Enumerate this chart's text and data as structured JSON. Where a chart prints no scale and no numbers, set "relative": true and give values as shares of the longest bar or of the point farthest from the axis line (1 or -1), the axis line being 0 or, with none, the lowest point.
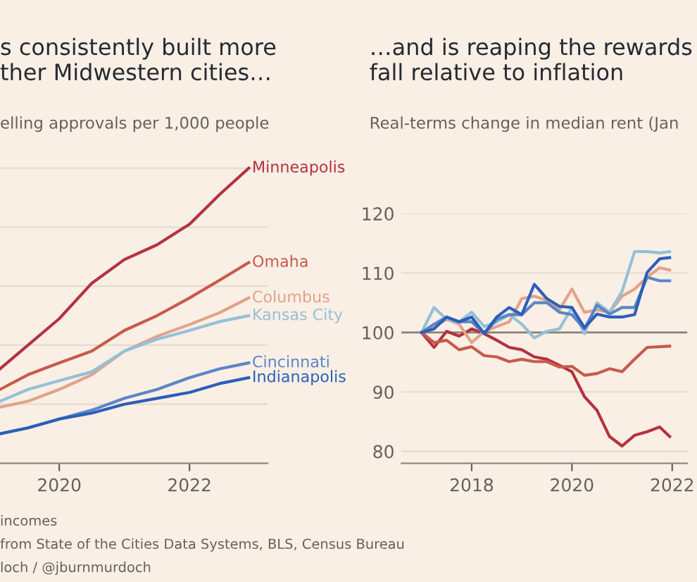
{
  "chart_data": [
    {
      "type": "line",
      "title": "s consistently built more\nther Midwestern cities…",
      "subtitle": "elling approvals per 1,000 people",
      "relative": true,
      "grid": "y",
      "x": [
        2019.09,
        2019.52,
        2020,
        2020.5,
        2021,
        2021.5,
        2022,
        2022.46,
        2022.91
      ],
      "xlim": [
        2019.09,
        2023.2
      ],
      "xticks": [
        2020,
        2022
      ],
      "series": [
        {
          "name": "Minneapolis",
          "color": "#b5323f",
          "values": [
            0.32,
            0.4,
            0.49,
            0.61,
            0.69,
            0.74,
            0.81,
            0.91,
            1.0
          ]
        },
        {
          "name": "Omaha",
          "color": "#c75a4a",
          "values": [
            0.25,
            0.3,
            0.34,
            0.38,
            0.45,
            0.5,
            0.56,
            0.62,
            0.68
          ]
        },
        {
          "name": "Columbus",
          "color": "#e2a28a",
          "values": [
            0.19,
            0.21,
            0.25,
            0.3,
            0.38,
            0.43,
            0.47,
            0.51,
            0.56
          ]
        },
        {
          "name": "Kansas City",
          "color": "#95c0d8",
          "values": [
            0.21,
            0.25,
            0.28,
            0.31,
            0.38,
            0.42,
            0.45,
            0.48,
            0.5
          ]
        },
        {
          "name": "Cincinnati",
          "color": "#5a86c6",
          "values": [
            0.1,
            0.12,
            0.15,
            0.18,
            0.22,
            0.25,
            0.29,
            0.32,
            0.34
          ]
        },
        {
          "name": "Indianapolis",
          "color": "#2d5fb8",
          "values": [
            0.1,
            0.12,
            0.15,
            0.17,
            0.2,
            0.22,
            0.24,
            0.27,
            0.29
          ]
        }
      ],
      "annotations": [
        "incomes",
        "from State of the Cities Data Systems, BLS, Census Bureau",
        "loch / @jburnmurdoch"
      ]
    },
    {
      "type": "line",
      "title": "…and is reaping the rewards\nfall relative to inflation",
      "subtitle": "Real-terms change in median rent (Jan",
      "grid": "y",
      "x": [
        2017.0,
        2017.25,
        2017.5,
        2017.75,
        2018.0,
        2018.25,
        2018.5,
        2018.75,
        2019.0,
        2019.25,
        2019.5,
        2019.75,
        2020.0,
        2020.25,
        2020.5,
        2020.75,
        2021.0,
        2021.25,
        2021.5,
        2021.75,
        2021.95
      ],
      "xlim": [
        2016.6,
        2022.3
      ],
      "xticks": [
        2018,
        2020,
        2022
      ],
      "ylim": [
        78,
        120
      ],
      "yticks": [
        80,
        90,
        100,
        110,
        120
      ],
      "ref_lines": [
        {
          "axis": "y",
          "value": 100,
          "color": "#8a8079"
        }
      ],
      "series": [
        {
          "color": "#b5323f",
          "values": [
            100,
            97.5,
            100.2,
            99.4,
            100.6,
            99.8,
            98.7,
            97.5,
            97.1,
            95.9,
            95.5,
            94.5,
            93.4,
            89.2,
            86.9,
            82.5,
            80.9,
            82.7,
            83.3,
            84.1,
            82.5
          ]
        },
        {
          "color": "#c75a4a",
          "values": [
            100,
            98.3,
            98.7,
            97.1,
            97.6,
            96.1,
            95.9,
            95.1,
            95.5,
            95.1,
            95.1,
            94.2,
            94.3,
            92.8,
            93.1,
            93.9,
            93.4,
            95.5,
            97.5,
            97.6,
            97.7
          ]
        },
        {
          "color": "#e2a28a",
          "values": [
            100,
            101.0,
            102.2,
            101.4,
            98.3,
            100.2,
            101.0,
            101.8,
            105.7,
            106.1,
            105.4,
            103.8,
            107.3,
            103.4,
            103.8,
            103.4,
            106.1,
            107.3,
            109.3,
            110.9,
            110.5
          ]
        },
        {
          "color": "#95c0d8",
          "values": [
            100,
            104.2,
            102.2,
            101.8,
            103.4,
            101.0,
            101.8,
            103.0,
            101.4,
            99.1,
            100.2,
            100.6,
            104.2,
            99.8,
            105.0,
            103.4,
            106.9,
            113.6,
            113.6,
            113.4,
            113.6
          ]
        },
        {
          "color": "#5a86c6",
          "values": [
            100,
            101.4,
            102.6,
            101.8,
            101.8,
            99.8,
            102.2,
            103.0,
            103.0,
            105.0,
            105.0,
            103.4,
            103.0,
            100.6,
            104.6,
            103.1,
            104.2,
            104.2,
            109.3,
            108.7,
            108.7
          ]
        },
        {
          "color": "#2d5fb8",
          "values": [
            100,
            100.6,
            102.6,
            101.8,
            102.6,
            99.8,
            102.6,
            104.2,
            103.0,
            108.1,
            105.7,
            104.4,
            104.2,
            100.8,
            103.1,
            102.6,
            102.6,
            103.0,
            110.1,
            112.4,
            112.6
          ]
        }
      ]
    }
  ]
}
